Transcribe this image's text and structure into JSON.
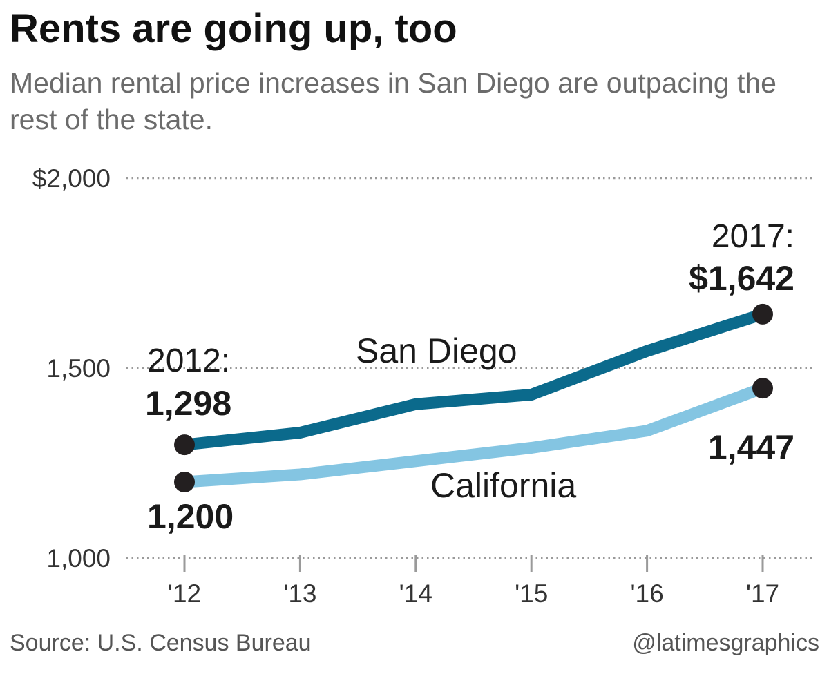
{
  "header": {
    "title": "Rents are going up, too",
    "subtitle": "Median rental price increases in San Diego are outpacing the rest of the state."
  },
  "footer": {
    "source": "Source: U.S. Census Bureau",
    "credit": "@latimesgraphics"
  },
  "colors": {
    "san_diego": "#0b6a8c",
    "california": "#84c5e2",
    "marker": "#231f20"
  },
  "chart_data": {
    "type": "line",
    "x": [
      2012,
      2013,
      2014,
      2015,
      2016,
      2017
    ],
    "x_tick_labels": [
      "'12",
      "'13",
      "'14",
      "'15",
      "'16",
      "'17"
    ],
    "y_tick_values": [
      1000,
      1500,
      2000
    ],
    "y_tick_labels": [
      "1,000",
      "1,500",
      "$2,000"
    ],
    "ylim": [
      1000,
      2000
    ],
    "grid": true,
    "series": [
      {
        "name": "San Diego",
        "values": [
          1298,
          1330,
          1405,
          1430,
          1545,
          1642
        ]
      },
      {
        "name": "California",
        "values": [
          1200,
          1220,
          1255,
          1290,
          1335,
          1447
        ]
      }
    ],
    "annotations": {
      "start_year": "2012:",
      "end_year": "2017:",
      "sd_start": "1,298",
      "sd_end": "$1,642",
      "ca_start": "1,200",
      "ca_end": "1,447"
    }
  }
}
